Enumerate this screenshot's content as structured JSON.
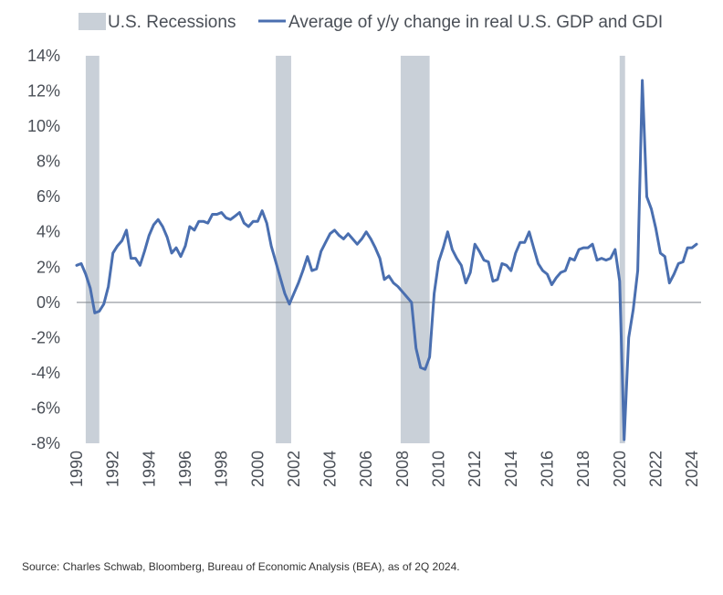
{
  "chart_data": {
    "type": "line",
    "legend": {
      "position": "top-left",
      "entries": [
        {
          "label": "U.S. Recessions",
          "kind": "shaded-area",
          "color": "#c9d0d8"
        },
        {
          "label": "Average of y/y change in real U.S. GDP and GDI",
          "kind": "line",
          "color": "#4a6fb0"
        }
      ]
    },
    "xlim": [
      1990,
      2024.5
    ],
    "ylim": [
      -8,
      14
    ],
    "yticks": [
      -8,
      -6,
      -4,
      -2,
      0,
      2,
      4,
      6,
      8,
      10,
      12,
      14
    ],
    "ytick_labels": [
      "-8%",
      "-6%",
      "-4%",
      "-2%",
      "0%",
      "2%",
      "4%",
      "6%",
      "8%",
      "10%",
      "12%",
      "14%"
    ],
    "xticks": [
      1990,
      1992,
      1994,
      1996,
      1998,
      2000,
      2002,
      2004,
      2006,
      2008,
      2010,
      2012,
      2014,
      2016,
      2018,
      2020,
      2022,
      2024
    ],
    "xtick_labels": [
      "1990",
      "1992",
      "1994",
      "1996",
      "1998",
      "2000",
      "2002",
      "2004",
      "2006",
      "2008",
      "2010",
      "2012",
      "2014",
      "2016",
      "2018",
      "2020",
      "2022",
      "2024"
    ],
    "zero_line": true,
    "grid": false,
    "recessions": [
      {
        "start": 1990.5,
        "end": 1991.25
      },
      {
        "start": 2001.0,
        "end": 2001.85
      },
      {
        "start": 2007.9,
        "end": 2009.5
      },
      {
        "start": 2020.0,
        "end": 2020.3
      }
    ],
    "series": [
      {
        "name": "Average of y/y change in real U.S. GDP and GDI",
        "color": "#4a6fb0",
        "x": [
          1990.0,
          1990.25,
          1990.5,
          1990.75,
          1991.0,
          1991.25,
          1991.5,
          1991.75,
          1992.0,
          1992.25,
          1992.5,
          1992.75,
          1993.0,
          1993.25,
          1993.5,
          1993.75,
          1994.0,
          1994.25,
          1994.5,
          1994.75,
          1995.0,
          1995.25,
          1995.5,
          1995.75,
          1996.0,
          1996.25,
          1996.5,
          1996.75,
          1997.0,
          1997.25,
          1997.5,
          1997.75,
          1998.0,
          1998.25,
          1998.5,
          1998.75,
          1999.0,
          1999.25,
          1999.5,
          1999.75,
          2000.0,
          2000.25,
          2000.5,
          2000.75,
          2001.0,
          2001.25,
          2001.5,
          2001.75,
          2002.0,
          2002.25,
          2002.5,
          2002.75,
          2003.0,
          2003.25,
          2003.5,
          2003.75,
          2004.0,
          2004.25,
          2004.5,
          2004.75,
          2005.0,
          2005.25,
          2005.5,
          2005.75,
          2006.0,
          2006.25,
          2006.5,
          2006.75,
          2007.0,
          2007.25,
          2007.5,
          2007.75,
          2008.0,
          2008.25,
          2008.5,
          2008.75,
          2009.0,
          2009.25,
          2009.5,
          2009.75,
          2010.0,
          2010.25,
          2010.5,
          2010.75,
          2011.0,
          2011.25,
          2011.5,
          2011.75,
          2012.0,
          2012.25,
          2012.5,
          2012.75,
          2013.0,
          2013.25,
          2013.5,
          2013.75,
          2014.0,
          2014.25,
          2014.5,
          2014.75,
          2015.0,
          2015.25,
          2015.5,
          2015.75,
          2016.0,
          2016.25,
          2016.5,
          2016.75,
          2017.0,
          2017.25,
          2017.5,
          2017.75,
          2018.0,
          2018.25,
          2018.5,
          2018.75,
          2019.0,
          2019.25,
          2019.5,
          2019.75,
          2020.0,
          2020.25,
          2020.5,
          2020.75,
          2021.0,
          2021.25,
          2021.5,
          2021.75,
          2022.0,
          2022.25,
          2022.5,
          2022.75,
          2023.0,
          2023.25,
          2023.5,
          2023.75,
          2024.0,
          2024.25
        ],
        "values": [
          2.1,
          2.2,
          1.6,
          0.8,
          -0.6,
          -0.5,
          -0.1,
          0.9,
          2.8,
          3.2,
          3.5,
          4.1,
          2.5,
          2.5,
          2.1,
          2.9,
          3.8,
          4.4,
          4.7,
          4.3,
          3.7,
          2.8,
          3.1,
          2.6,
          3.2,
          4.3,
          4.1,
          4.6,
          4.6,
          4.5,
          5.0,
          5.0,
          5.1,
          4.8,
          4.7,
          4.9,
          5.1,
          4.5,
          4.3,
          4.6,
          4.6,
          5.2,
          4.5,
          3.2,
          2.3,
          1.4,
          0.5,
          -0.1,
          0.5,
          1.1,
          1.8,
          2.6,
          1.8,
          1.9,
          2.9,
          3.4,
          3.9,
          4.1,
          3.8,
          3.6,
          3.9,
          3.6,
          3.3,
          3.6,
          4.0,
          3.6,
          3.1,
          2.5,
          1.3,
          1.5,
          1.1,
          0.9,
          0.6,
          0.3,
          0.0,
          -2.6,
          -3.7,
          -3.8,
          -3.1,
          0.5,
          2.3,
          3.1,
          4.0,
          3.0,
          2.5,
          2.1,
          1.1,
          1.7,
          3.3,
          2.9,
          2.4,
          2.3,
          1.2,
          1.3,
          2.2,
          2.1,
          1.8,
          2.8,
          3.4,
          3.4,
          4.0,
          3.1,
          2.2,
          1.8,
          1.6,
          1.0,
          1.4,
          1.7,
          1.8,
          2.5,
          2.4,
          3.0,
          3.1,
          3.1,
          3.3,
          2.4,
          2.5,
          2.4,
          2.5,
          3.0,
          1.2,
          -7.8,
          -2.0,
          -0.4,
          1.8,
          12.6,
          6.0,
          5.3,
          4.2,
          2.8,
          2.6,
          1.1,
          1.6,
          2.2,
          2.3,
          3.1,
          3.1,
          3.3
        ]
      }
    ]
  },
  "source": "Source: Charles Schwab, Bloomberg, Bureau of Economic Analysis (BEA), as of 2Q 2024."
}
